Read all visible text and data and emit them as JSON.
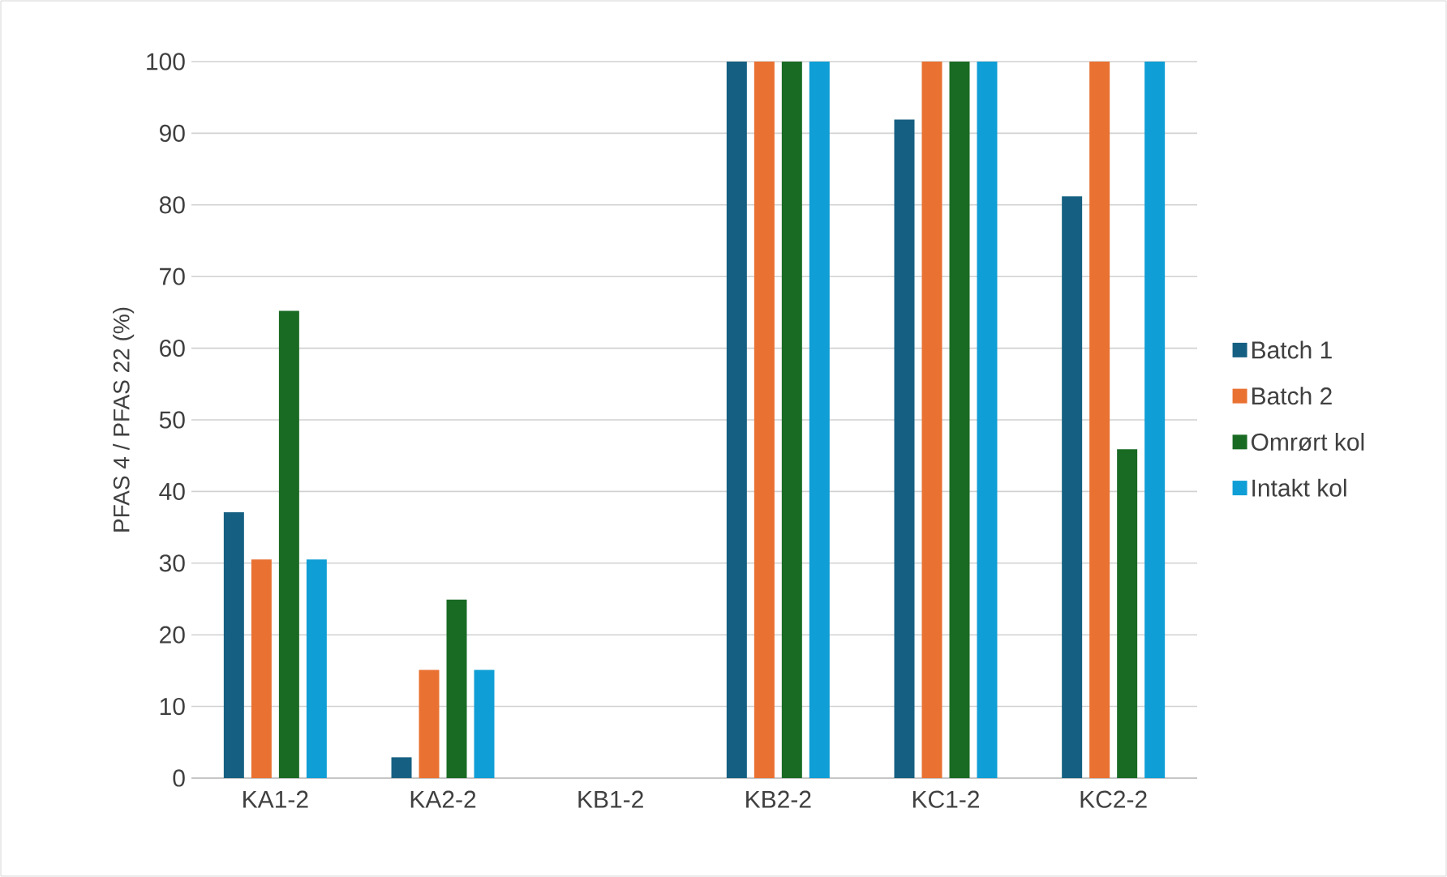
{
  "chart_data": {
    "type": "bar",
    "ylabel": "PFAS 4 / PFAS 22 (%)",
    "categories": [
      "KA1-2",
      "KA2-2",
      "KB1-2",
      "KB2-2",
      "KC1-2",
      "KC2-2"
    ],
    "series": [
      {
        "name": "Batch 1",
        "color": "#156082",
        "values": [
          37.1,
          2.9,
          null,
          100,
          91.9,
          81.2
        ]
      },
      {
        "name": "Batch 2",
        "color": "#e97132",
        "values": [
          30.5,
          15.1,
          null,
          100,
          100,
          100
        ]
      },
      {
        "name": "Omrørt kol",
        "color": "#196b24",
        "values": [
          65.2,
          24.9,
          null,
          100,
          100,
          45.9
        ]
      },
      {
        "name": "Intakt kol",
        "color": "#0f9ed5",
        "values": [
          30.5,
          15.1,
          null,
          100,
          100,
          100
        ]
      }
    ],
    "ylim": [
      0,
      100
    ],
    "yticks": [
      0,
      10,
      20,
      30,
      40,
      50,
      60,
      70,
      80,
      90,
      100
    ],
    "grid": "y",
    "legend": "right"
  }
}
